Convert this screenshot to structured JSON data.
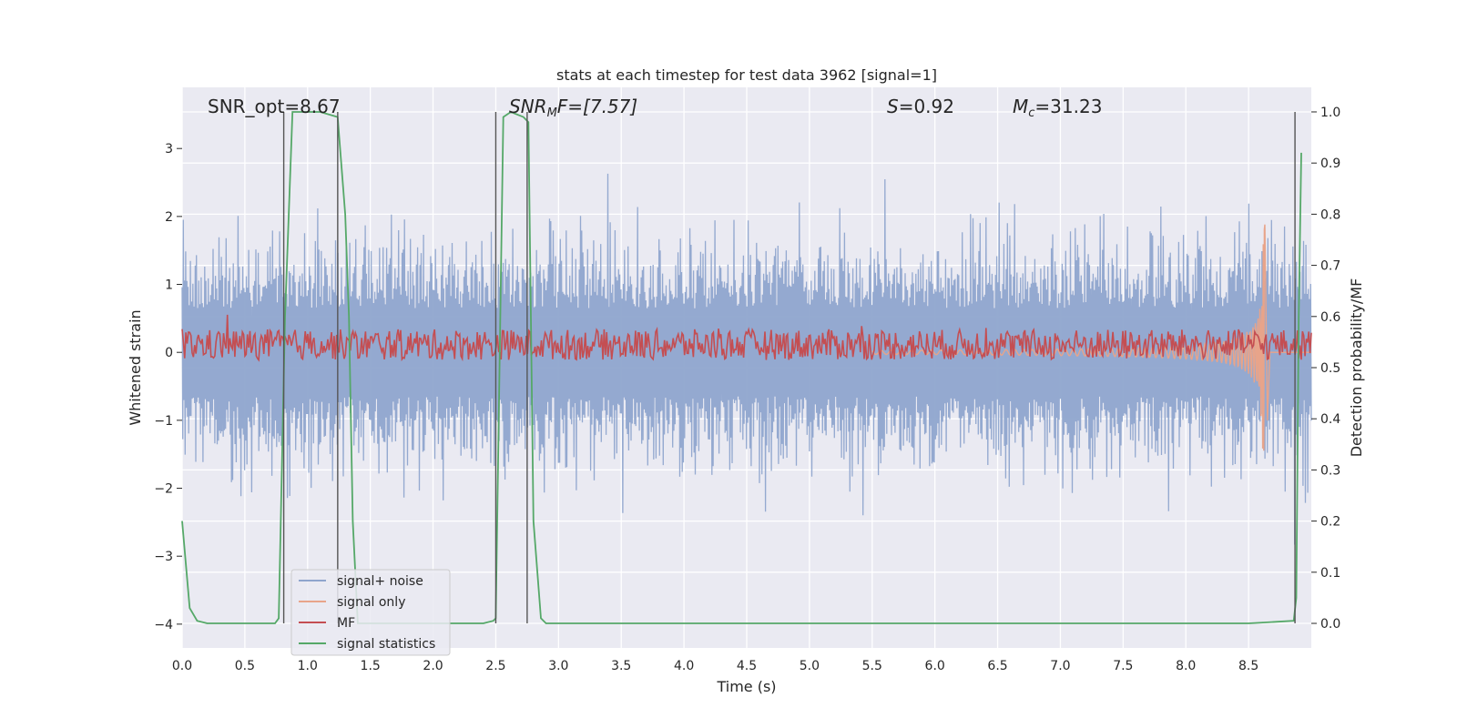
{
  "chart_data": {
    "type": "line",
    "title": "stats at each timestep for test data 3962 [signal=1]",
    "xlabel": "Time (s)",
    "ylabel": "Whitened strain",
    "y2label": "Detection probability/MF",
    "xlim": [
      0,
      9.0
    ],
    "ylim": [
      -4.35,
      3.9
    ],
    "y2lim": [
      -0.048,
      1.048
    ],
    "x_ticks": [
      0.0,
      0.5,
      1.0,
      1.5,
      2.0,
      2.5,
      3.0,
      3.5,
      4.0,
      4.5,
      5.0,
      5.5,
      6.0,
      6.5,
      7.0,
      7.5,
      8.0,
      8.5
    ],
    "x_tick_labels": [
      "0.0",
      "0.5",
      "1.0",
      "1.5",
      "2.0",
      "2.5",
      "3.0",
      "3.5",
      "4.0",
      "4.5",
      "5.0",
      "5.5",
      "6.0",
      "6.5",
      "7.0",
      "7.5",
      "8.0",
      "8.5"
    ],
    "y_ticks": [
      -4,
      -3,
      -2,
      -1,
      0,
      1,
      2,
      3
    ],
    "y_tick_labels": [
      "−4",
      "−3",
      "−2",
      "−1",
      "0",
      "1",
      "2",
      "3"
    ],
    "y2_ticks": [
      0.0,
      0.1,
      0.2,
      0.3,
      0.4,
      0.5,
      0.6,
      0.7,
      0.8,
      0.9,
      1.0
    ],
    "y2_tick_labels": [
      "0.0",
      "0.1",
      "0.2",
      "0.3",
      "0.4",
      "0.5",
      "0.6",
      "0.7",
      "0.8",
      "0.9",
      "1.0"
    ],
    "grid": true,
    "legend_position": "lower-left",
    "annotations": {
      "snr_opt": "SNR_opt=8.67",
      "snr_mf_main": "SNR",
      "snr_mf_sub": "M",
      "snr_mf_rest": "F=[7.57]",
      "s_italic": "S",
      "s_rest": "=0.92",
      "mc_main": "M",
      "mc_sub": "c",
      "mc_rest": "=31.23"
    },
    "vertical_markers": [
      0.81,
      1.24,
      2.5,
      2.75,
      8.87
    ],
    "series": [
      {
        "name": "signal+ noise",
        "color": "#8fa5cd",
        "axis": "left",
        "description_level": "noise band, typical amplitude ~1.5, peaks to about +3.5 / -3.1"
      },
      {
        "name": "signal only",
        "color": "#e8a48a",
        "axis": "left",
        "chirp_start": 5.5,
        "chirp_peak_time": 8.63,
        "chirp_peak_amplitude": 1.9
      },
      {
        "name": "MF",
        "color": "#c44e52",
        "axis": "right",
        "baseline": 0.545,
        "fluctuation": 0.03
      },
      {
        "name": "signal statistics",
        "color": "#55a868",
        "axis": "right",
        "x": [
          0.0,
          0.06,
          0.12,
          0.2,
          0.4,
          0.6,
          0.74,
          0.77,
          0.82,
          0.88,
          1.0,
          1.1,
          1.24,
          1.3,
          1.33,
          1.36,
          1.4,
          1.5,
          2.0,
          2.4,
          2.48,
          2.5,
          2.56,
          2.62,
          2.72,
          2.76,
          2.8,
          2.86,
          2.9,
          3.5,
          5.0,
          7.0,
          8.5,
          8.86,
          8.88,
          8.9,
          8.92
        ],
        "y": [
          0.2,
          0.03,
          0.005,
          0.0,
          0.0,
          0.0,
          0.0,
          0.01,
          0.6,
          1.0,
          1.0,
          1.0,
          0.99,
          0.8,
          0.6,
          0.2,
          0.0,
          0.0,
          0.0,
          0.0,
          0.005,
          0.01,
          0.99,
          1.0,
          0.99,
          0.98,
          0.2,
          0.01,
          0.0,
          0.0,
          0.0,
          0.0,
          0.0,
          0.005,
          0.05,
          0.6,
          0.92
        ]
      }
    ]
  }
}
